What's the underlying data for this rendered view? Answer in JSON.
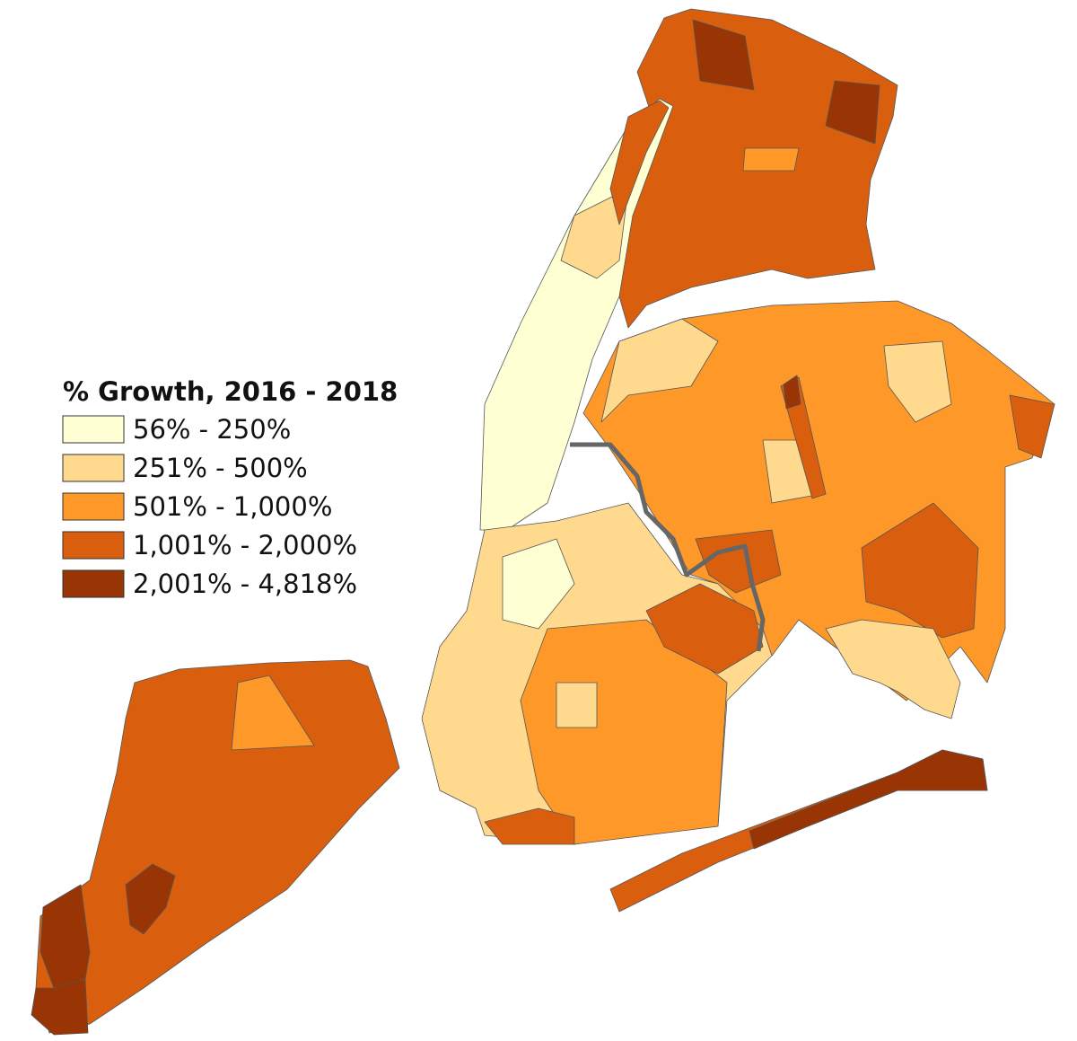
{
  "legend": {
    "title": "% Growth, 2016 - 2018",
    "items": [
      {
        "label": "56% - 250%",
        "color": "#ffffd4"
      },
      {
        "label": "251% - 500%",
        "color": "#fed98e"
      },
      {
        "label": "501% - 1,000%",
        "color": "#fe9929"
      },
      {
        "label": "1,001% - 2,000%",
        "color": "#d95f0e"
      },
      {
        "label": "2,001% - 4,818%",
        "color": "#993404"
      }
    ]
  }
}
